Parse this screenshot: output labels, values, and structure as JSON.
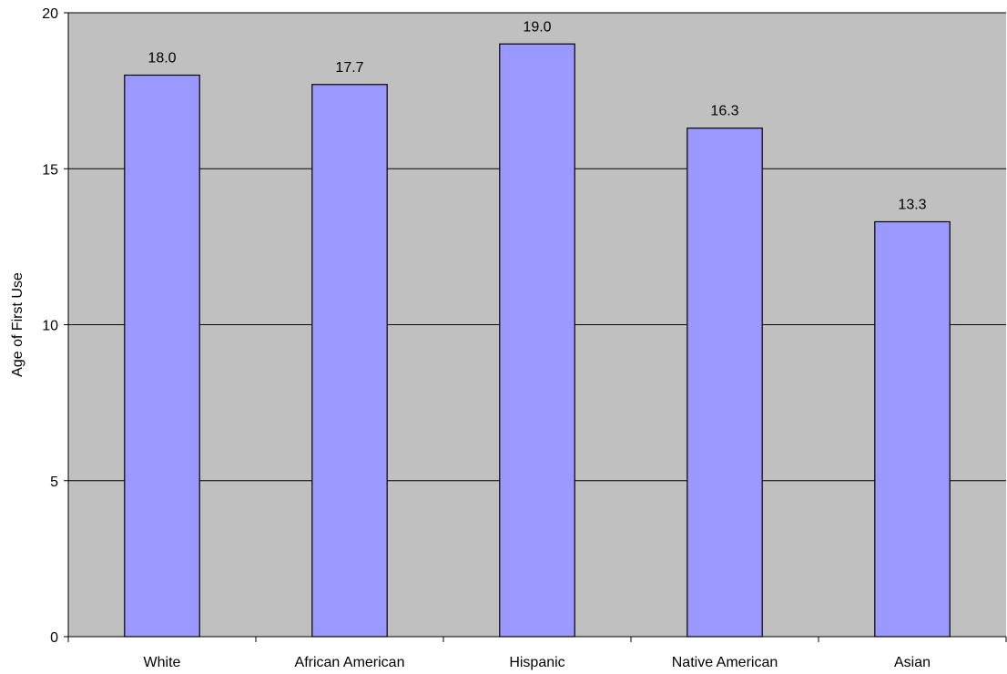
{
  "chart_data": {
    "type": "bar",
    "categories": [
      "White",
      "African American",
      "Hispanic",
      "Native American",
      "Asian"
    ],
    "values": [
      18.0,
      17.7,
      19.0,
      16.3,
      13.3
    ],
    "data_labels": [
      "18.0",
      "17.7",
      "19.0",
      "16.3",
      "13.3"
    ],
    "title": "",
    "xlabel": "",
    "ylabel": "Age of First Use",
    "ylim": [
      0,
      20
    ],
    "yticks": [
      0,
      5,
      10,
      15,
      20
    ],
    "grid": true,
    "legend": "none",
    "colors": {
      "plot_background": "#c0c0c0",
      "bar_fill": "#9999ff",
      "bar_stroke": "#000000",
      "gridline": "#000000"
    }
  }
}
